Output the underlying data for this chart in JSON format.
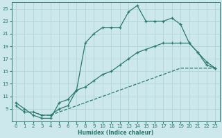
{
  "xlabel": "Humidex (Indice chaleur)",
  "bg_color": "#cce8ec",
  "grid_color": "#b0d4d8",
  "line_color": "#2a7a6a",
  "xlim": [
    -0.5,
    23.5
  ],
  "ylim": [
    7,
    26
  ],
  "xticks": [
    0,
    1,
    2,
    3,
    4,
    5,
    6,
    7,
    8,
    9,
    10,
    11,
    12,
    13,
    14,
    15,
    16,
    17,
    18,
    19,
    20,
    21,
    22,
    23
  ],
  "yticks": [
    9,
    11,
    13,
    15,
    17,
    19,
    21,
    23,
    25
  ],
  "curve1_x": [
    0,
    1,
    2,
    3,
    4,
    5,
    6,
    7,
    8,
    9,
    10,
    11,
    12,
    13,
    14,
    15,
    16,
    17,
    18,
    19,
    20,
    21,
    22,
    23
  ],
  "curve1_y": [
    10,
    9,
    8,
    7.5,
    7.5,
    10,
    10.5,
    12,
    19.5,
    21,
    22,
    22,
    22,
    24.5,
    25.5,
    23,
    23,
    23,
    23.5,
    22.5,
    19.5,
    18,
    16,
    15.5
  ],
  "curve1_marker_x": [
    0,
    1,
    2,
    3,
    4,
    5,
    6,
    7,
    8,
    9,
    10,
    11,
    12,
    13,
    14,
    15,
    16,
    17,
    18,
    20,
    21,
    22,
    23
  ],
  "curve2_x": [
    0,
    1,
    2,
    3,
    4,
    5,
    6,
    7,
    8,
    9,
    10,
    11,
    12,
    13,
    14,
    15,
    16,
    17,
    18,
    19,
    20,
    21,
    22,
    23
  ],
  "curve2_y": [
    9.5,
    8.5,
    8.5,
    8,
    8,
    9,
    9.5,
    12,
    12.5,
    13.5,
    14.5,
    15,
    16,
    17,
    18,
    18.5,
    19,
    19.5,
    19.5,
    19.5,
    19.5,
    18,
    16.5,
    15.5
  ],
  "curve3_x": [
    2,
    3,
    4,
    5,
    6,
    7,
    8,
    9,
    10,
    11,
    12,
    13,
    14,
    15,
    16,
    17,
    18,
    19,
    20,
    21,
    22,
    23
  ],
  "curve3_y": [
    8.5,
    8,
    8,
    8.5,
    9,
    9.5,
    10,
    10.5,
    11,
    11.5,
    12,
    12.5,
    13,
    13.5,
    14,
    14.5,
    15,
    15.5,
    15.5,
    15.5,
    15.5,
    15.5
  ]
}
